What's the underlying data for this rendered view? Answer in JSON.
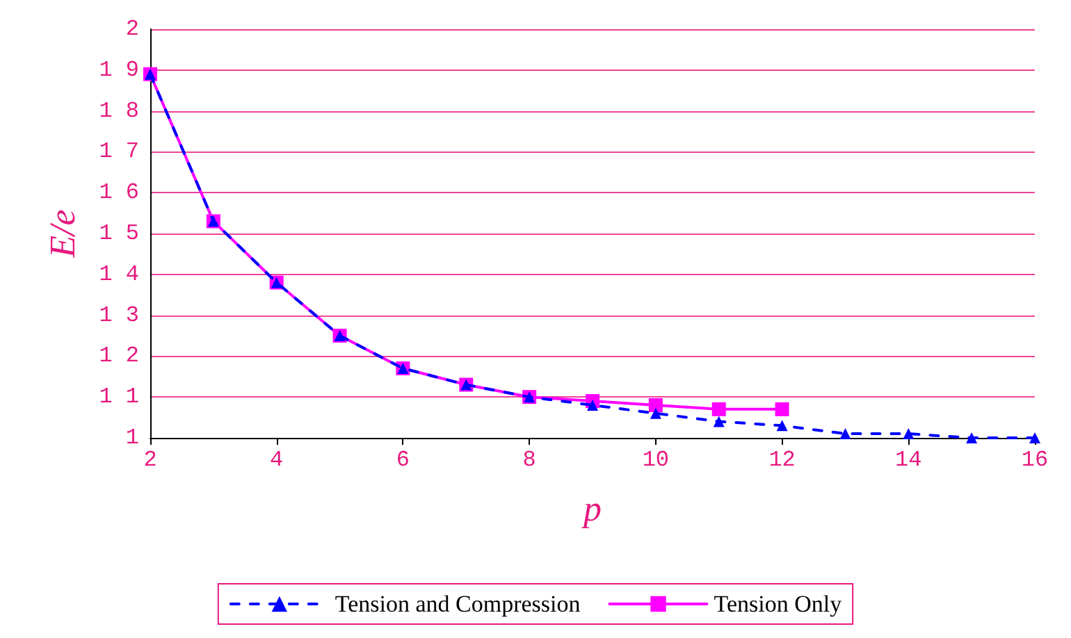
{
  "chart_data": {
    "type": "line",
    "xlabel": "p",
    "ylabel": "E/e",
    "xlim": [
      2,
      16
    ],
    "xticks": [
      2,
      4,
      6,
      8,
      10,
      12,
      14,
      16
    ],
    "ylim": [
      1,
      2
    ],
    "yticks": [
      1,
      {
        "value": 1.1,
        "label": "1 1"
      },
      {
        "value": 1.2,
        "label": "1 2"
      },
      {
        "value": 1.3,
        "label": "1 3"
      },
      {
        "value": 1.4,
        "label": "1 4"
      },
      {
        "value": 1.5,
        "label": "1 5"
      },
      {
        "value": 1.6,
        "label": "1 6"
      },
      {
        "value": 1.7,
        "label": "1 7"
      },
      {
        "value": 1.8,
        "label": "1 8"
      },
      {
        "value": 1.9,
        "label": "1 9"
      },
      2
    ],
    "grid": "y",
    "legend": "bottom",
    "series": [
      {
        "name": "Tension and Compression",
        "color": "#0000ff",
        "marker": "triangle",
        "line_style": "dashed",
        "x": [
          2,
          3,
          4,
          5,
          6,
          7,
          8,
          9,
          10,
          11,
          12,
          13,
          14,
          15,
          16
        ],
        "values": [
          1.89,
          1.53,
          1.38,
          1.25,
          1.17,
          1.13,
          1.1,
          1.08,
          1.06,
          1.04,
          1.03,
          1.01,
          1.01,
          1.0,
          1.0
        ]
      },
      {
        "name": "Tension Only",
        "color": "#ff00ff",
        "marker": "square",
        "line_style": "solid",
        "x": [
          2,
          3,
          4,
          5,
          6,
          7,
          8,
          9,
          10,
          11,
          12
        ],
        "values": [
          1.89,
          1.53,
          1.38,
          1.25,
          1.17,
          1.13,
          1.1,
          1.09,
          1.08,
          1.07,
          1.07
        ]
      }
    ]
  }
}
